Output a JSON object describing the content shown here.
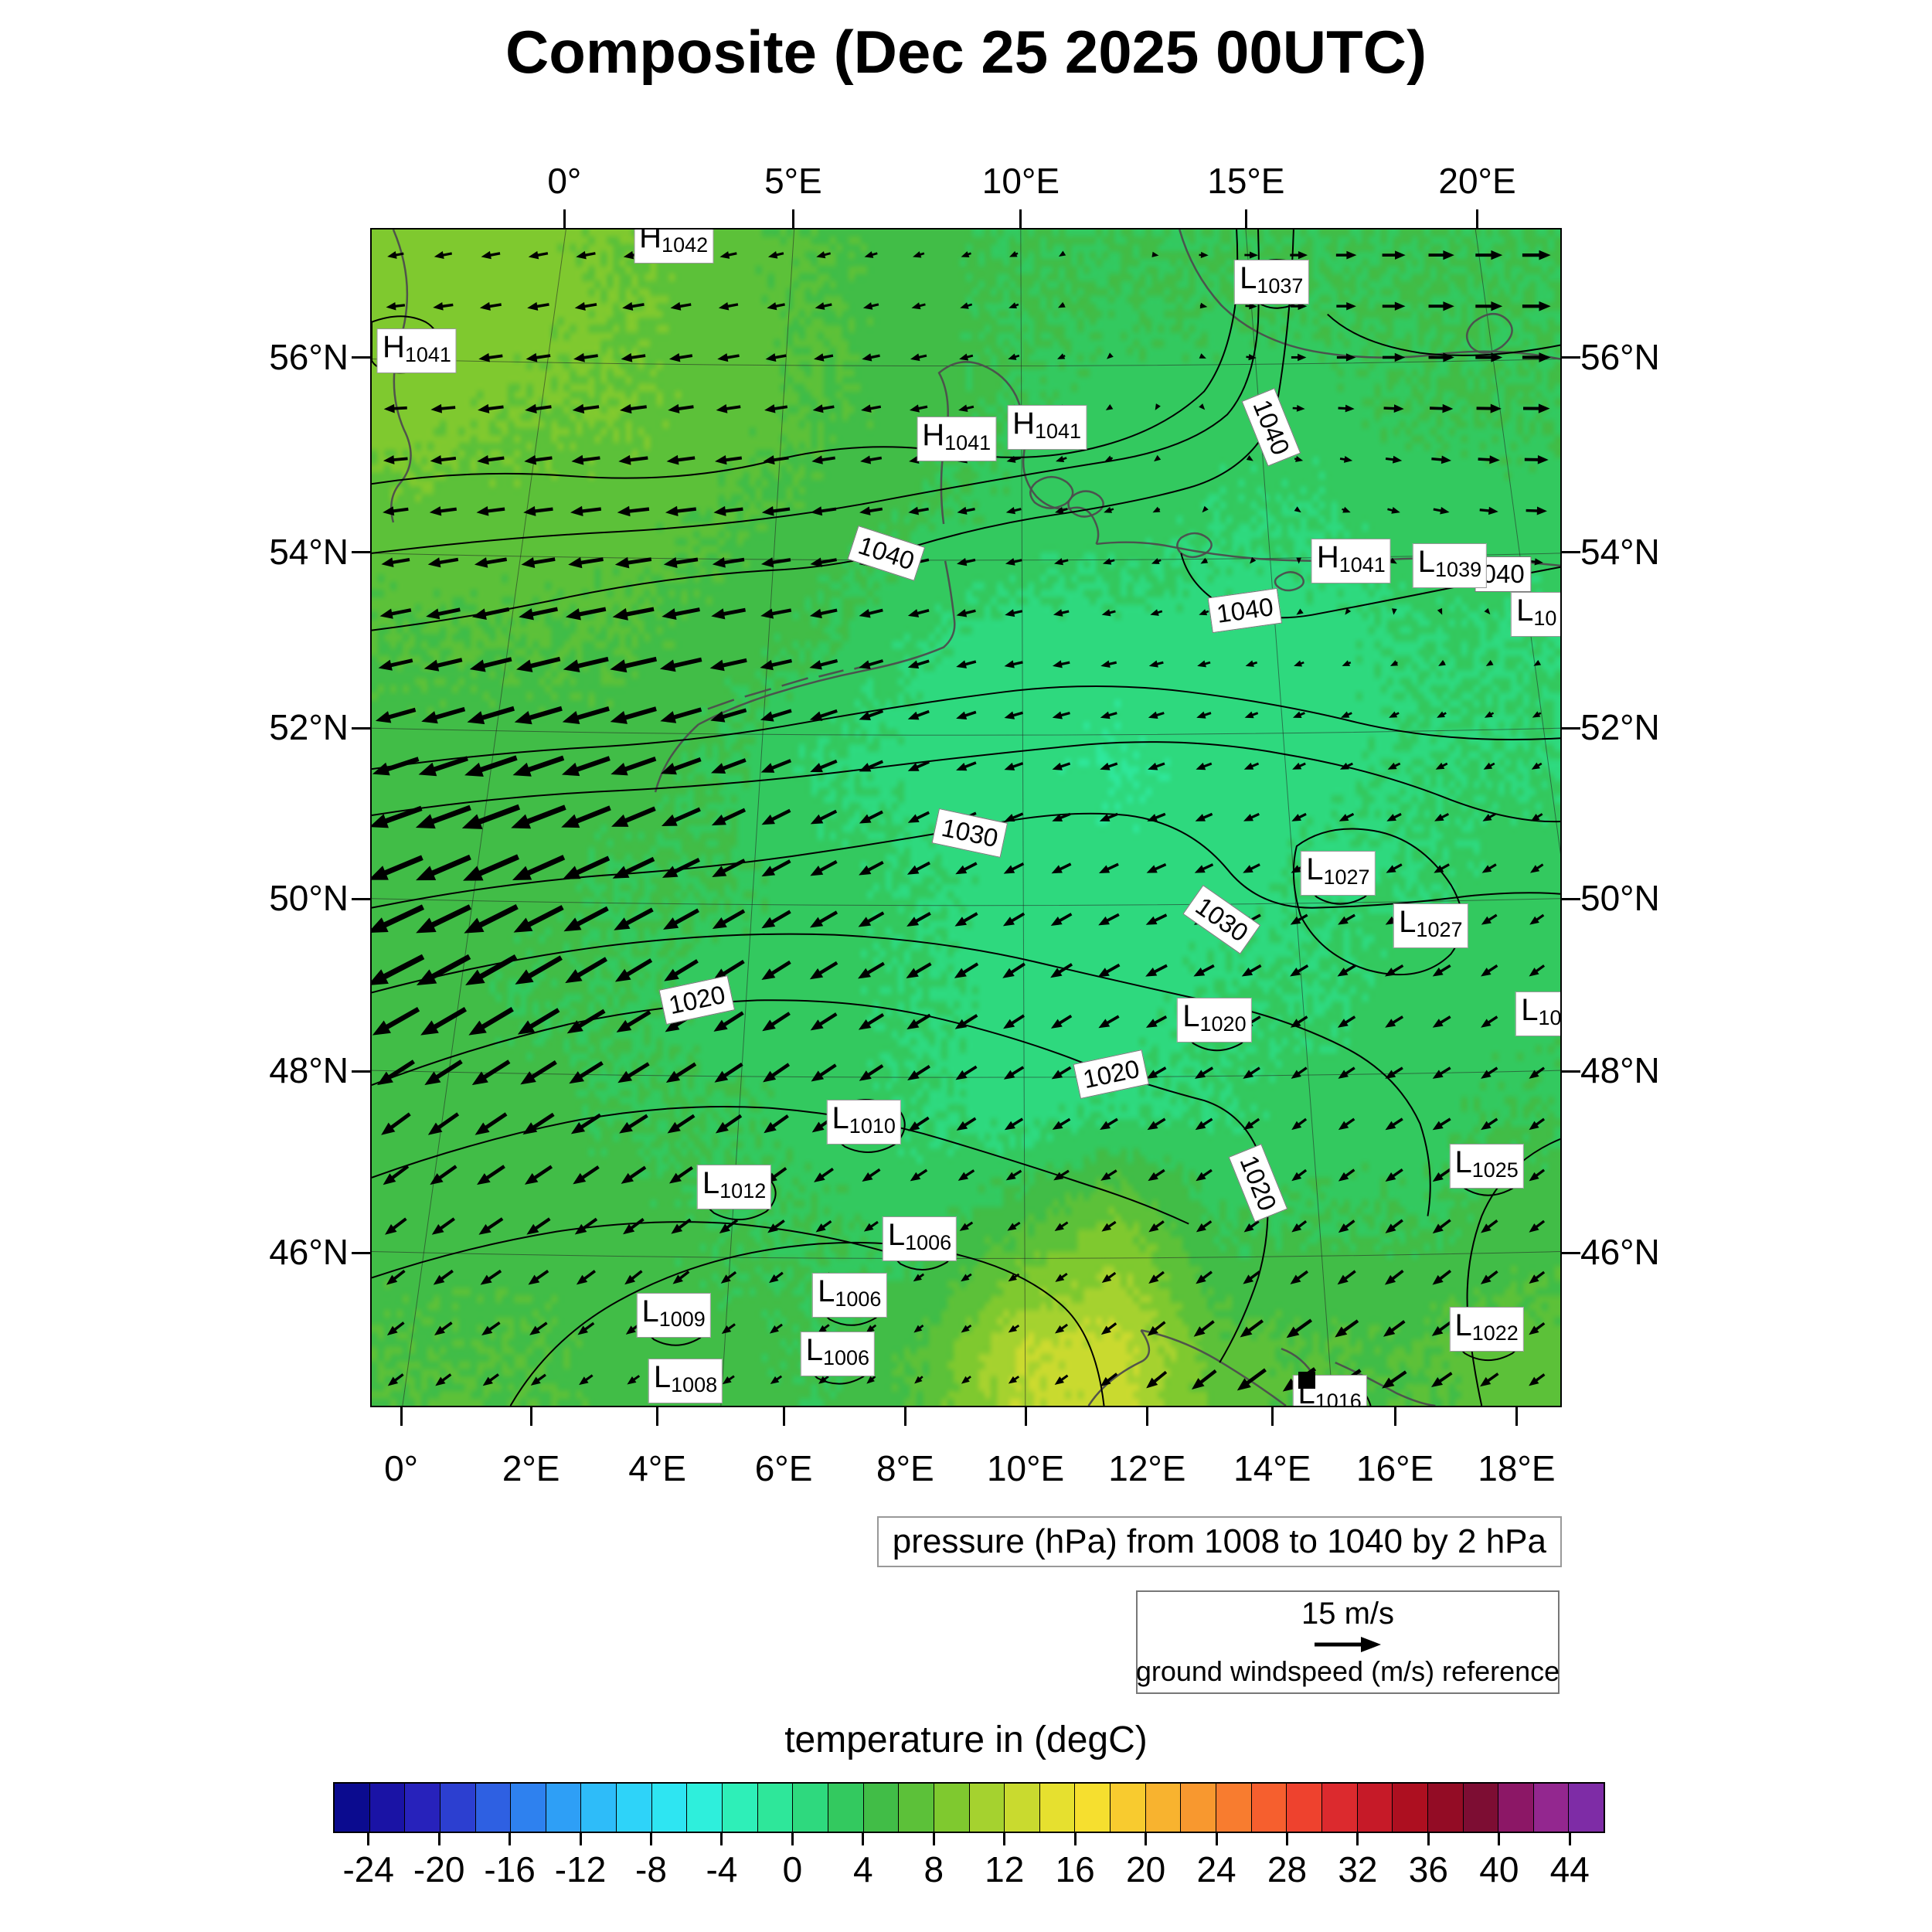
{
  "chart_data": {
    "type": "heatmap",
    "title": "Composite (Dec 25 2025 00UTC)",
    "axes": {
      "top": [
        {
          "label": "0°",
          "f": 0.163
        },
        {
          "label": "5°E",
          "f": 0.355
        },
        {
          "label": "10°E",
          "f": 0.546
        },
        {
          "label": "15°E",
          "f": 0.735
        },
        {
          "label": "20°E",
          "f": 0.929
        }
      ],
      "bottom": [
        {
          "label": "0°",
          "f": 0.026
        },
        {
          "label": "2°E",
          "f": 0.135
        },
        {
          "label": "4°E",
          "f": 0.241
        },
        {
          "label": "6°E",
          "f": 0.347
        },
        {
          "label": "8°E",
          "f": 0.449
        },
        {
          "label": "10°E",
          "f": 0.55
        },
        {
          "label": "12°E",
          "f": 0.652
        },
        {
          "label": "14°E",
          "f": 0.757
        },
        {
          "label": "16°E",
          "f": 0.86
        },
        {
          "label": "18°E",
          "f": 0.962
        }
      ],
      "left": [
        {
          "label": "56°N",
          "f": 0.11
        },
        {
          "label": "54°N",
          "f": 0.275
        },
        {
          "label": "52°N",
          "f": 0.424
        },
        {
          "label": "50°N",
          "f": 0.569
        },
        {
          "label": "48°N",
          "f": 0.715
        },
        {
          "label": "46°N",
          "f": 0.869
        }
      ]
    },
    "temperature": {
      "units": "degC",
      "level_min": -26,
      "level_step": 2,
      "palette": [
        "#0b0b8f",
        "#1a13a5",
        "#2722bb",
        "#2c3fd0",
        "#2e60e2",
        "#2e81ef",
        "#2e9ff6",
        "#2ebcf9",
        "#2ed3f9",
        "#2ee5f2",
        "#2eefdc",
        "#2eefb8",
        "#2ee79a",
        "#2ed97e",
        "#33c95f",
        "#41bd47",
        "#5cc139",
        "#7fc92f",
        "#a5d22f",
        "#c9da2f",
        "#e6e02f",
        "#f6df2f",
        "#f8cb2f",
        "#f8b32f",
        "#f8982f",
        "#f87c2f",
        "#f65f2e",
        "#ee422e",
        "#dc2a2e",
        "#c61a28",
        "#ad0f20",
        "#930c25",
        "#7d0d33",
        "#8c1766",
        "#93278f",
        "#7e2ca6"
      ],
      "grid": [
        [
          9,
          9,
          8,
          7,
          6,
          5,
          4,
          4,
          4,
          4,
          4,
          4
        ],
        [
          9,
          8,
          8,
          7,
          6,
          5,
          4,
          3,
          3,
          3,
          4,
          4
        ],
        [
          7,
          7,
          7,
          6,
          5,
          4,
          3,
          3,
          2,
          2,
          3,
          3
        ],
        [
          6,
          6,
          6,
          5,
          4,
          2,
          1,
          1,
          1,
          1,
          2,
          2
        ],
        [
          5,
          5,
          5,
          4,
          2,
          1,
          1,
          0,
          1,
          1,
          2,
          2
        ],
        [
          5,
          5,
          4,
          4,
          3,
          2,
          1,
          1,
          1,
          2,
          2,
          3
        ],
        [
          5,
          4,
          4,
          3,
          3,
          2,
          1,
          1,
          2,
          2,
          3,
          3
        ],
        [
          5,
          5,
          4,
          4,
          3,
          2,
          1,
          2,
          2,
          3,
          3,
          4
        ],
        [
          5,
          5,
          5,
          4,
          4,
          3,
          6,
          9,
          4,
          4,
          4,
          5
        ],
        [
          6,
          6,
          5,
          5,
          4,
          6,
          12,
          13,
          7,
          6,
          6,
          7
        ]
      ]
    },
    "colorbar": {
      "title": "temperature in (degC)",
      "range_min": -26,
      "range_max": 46,
      "ticks": [
        -24,
        -20,
        -16,
        -12,
        -8,
        -4,
        0,
        4,
        8,
        12,
        16,
        20,
        24,
        28,
        32,
        36,
        40,
        44
      ]
    },
    "wind": {
      "ref_label": "15 m/s",
      "ref_caption": "ground windspeed (m/s) reference",
      "ref_speed_ms": 15,
      "u": [
        [
          -4,
          -5,
          -5,
          -4,
          -3,
          -2,
          2,
          5,
          7,
          8
        ],
        [
          -6,
          -7,
          -7,
          -6,
          -5,
          -3,
          0,
          4,
          7,
          8
        ],
        [
          -7,
          -8,
          -9,
          -8,
          -6,
          -4,
          -2,
          1,
          4,
          6
        ],
        [
          -9,
          -12,
          -13,
          -9,
          -6,
          -5,
          -4,
          -3,
          -2,
          -2
        ],
        [
          -14,
          -16,
          -12,
          -8,
          -6,
          -5,
          -5,
          -4,
          -4,
          -3
        ],
        [
          -16,
          -14,
          -10,
          -8,
          -7,
          -6,
          -6,
          -5,
          -5,
          -4
        ],
        [
          -8,
          -9,
          -8,
          -7,
          -6,
          -5,
          -5,
          -4,
          -5,
          -4
        ],
        [
          -5,
          -6,
          -5,
          -4,
          -3,
          -3,
          -4,
          -4,
          -5,
          -4
        ],
        [
          -4,
          -4,
          -3,
          -3,
          -2,
          -3,
          -6,
          -10,
          -6,
          -4
        ]
      ],
      "v": [
        [
          -1,
          -1,
          -1,
          -1,
          -1,
          -1,
          0,
          0,
          0,
          0
        ],
        [
          0,
          -1,
          -1,
          -1,
          -1,
          -1,
          -1,
          0,
          0,
          0
        ],
        [
          -1,
          -1,
          -1,
          -1,
          -1,
          -1,
          -1,
          -1,
          -1,
          0
        ],
        [
          -2,
          -3,
          -3,
          -2,
          -2,
          -1,
          -1,
          -1,
          -1,
          -1
        ],
        [
          -5,
          -6,
          -5,
          -4,
          -3,
          -2,
          -2,
          -2,
          -2,
          -2
        ],
        [
          -8,
          -8,
          -6,
          -5,
          -4,
          -4,
          -3,
          -3,
          -3,
          -3
        ],
        [
          -6,
          -6,
          -5,
          -5,
          -4,
          -3,
          -3,
          -3,
          -3,
          -3
        ],
        [
          -4,
          -4,
          -4,
          -3,
          -2,
          -2,
          -3,
          -3,
          -4,
          -3
        ],
        [
          -3,
          -3,
          -2,
          -2,
          -2,
          -2,
          -5,
          -7,
          -4,
          -3
        ]
      ]
    },
    "pressure": {
      "caption": "pressure (hPa) from 1008 to 1040 by 2 hPa",
      "centers": [
        {
          "t": "H",
          "v": "1042",
          "x": 0.254,
          "y": 0.01
        },
        {
          "t": "H",
          "v": "1041",
          "x": 0.038,
          "y": 0.103
        },
        {
          "t": "L",
          "v": "1037",
          "x": 0.757,
          "y": 0.045
        },
        {
          "t": "H",
          "v": "1041",
          "x": 0.492,
          "y": 0.178
        },
        {
          "t": "H",
          "v": "1041",
          "x": 0.568,
          "y": 0.168
        },
        {
          "t": "H",
          "v": "1041",
          "x": 0.824,
          "y": 0.282
        },
        {
          "t": "L",
          "v": "1039",
          "x": 0.907,
          "y": 0.286
        },
        {
          "t": "L",
          "v": "10",
          "x": 0.98,
          "y": 0.327
        },
        {
          "t": "L",
          "v": "1027",
          "x": 0.813,
          "y": 0.547
        },
        {
          "t": "L",
          "v": "1027",
          "x": 0.891,
          "y": 0.592
        },
        {
          "t": "L",
          "v": "1020",
          "x": 0.709,
          "y": 0.672
        },
        {
          "t": "L",
          "v": "10",
          "x": 0.984,
          "y": 0.667
        },
        {
          "t": "L",
          "v": "1010",
          "x": 0.414,
          "y": 0.759
        },
        {
          "t": "L",
          "v": "1012",
          "x": 0.305,
          "y": 0.814
        },
        {
          "t": "L",
          "v": "1006",
          "x": 0.461,
          "y": 0.858
        },
        {
          "t": "L",
          "v": "1006",
          "x": 0.402,
          "y": 0.906
        },
        {
          "t": "L",
          "v": "1009",
          "x": 0.254,
          "y": 0.923
        },
        {
          "t": "L",
          "v": "1006",
          "x": 0.392,
          "y": 0.956
        },
        {
          "t": "L",
          "v": "1008",
          "x": 0.264,
          "y": 0.979
        },
        {
          "t": "L",
          "v": "1025",
          "x": 0.938,
          "y": 0.796
        },
        {
          "t": "L",
          "v": "1022",
          "x": 0.938,
          "y": 0.935
        },
        {
          "t": "L",
          "v": "1016",
          "x": 0.806,
          "y": 0.993
        }
      ],
      "contour_labels": [
        {
          "text": "1040",
          "x": 0.433,
          "y": 0.275,
          "rot": 18
        },
        {
          "text": "1040",
          "x": 0.757,
          "y": 0.168,
          "rot": 68
        },
        {
          "text": "1040",
          "x": 0.735,
          "y": 0.324,
          "rot": -8
        },
        {
          "text": "040",
          "x": 0.952,
          "y": 0.293,
          "rot": 0
        },
        {
          "text": "1030",
          "x": 0.503,
          "y": 0.513,
          "rot": 12
        },
        {
          "text": "1030",
          "x": 0.715,
          "y": 0.587,
          "rot": 35
        },
        {
          "text": "1020",
          "x": 0.274,
          "y": 0.655,
          "rot": -12
        },
        {
          "text": "1020",
          "x": 0.622,
          "y": 0.718,
          "rot": -12
        },
        {
          "text": "1020",
          "x": 0.746,
          "y": 0.811,
          "rot": 68
        }
      ],
      "isobars": [
        "M 0 520 Q 120 505 240 480 Q 380 450 520 442 Q 610 438 700 412 Q 800 382 900 368 Q 1000 352 1060 335 Q 1140 312 1172 240 Q 1192 130 1196 0",
        "M 1542 438 Q 1470 452 1400 465 Q 1300 485 1220 500 Q 1150 512 1100 485 Q 1060 460 1050 420",
        "M 0 330 Q 130 310 260 320 Q 400 330 520 300 Q 640 270 760 290 Q 860 305 950 280 Q 1030 258 1080 210 Q 1110 170 1120 100 Q 1125 50 1122 0",
        "M 1130 60 Q 1150 35 1185 40 Q 1215 45 1212 75 Q 1208 100 1175 102 Q 1140 102 1130 60 Z",
        "M 0 120 Q 40 105 70 120 Q 95 135 80 165 Q 60 190 25 185 Q 5 180 0 170 Z",
        "M 1542 150 Q 1440 170 1360 160 Q 1280 148 1240 110",
        "M 0 880 Q 150 850 300 838 Q 450 828 580 808 Q 700 790 800 772 Q 900 752 980 760 Q 1060 770 1110 830 Q 1150 880 1220 880 Q 1320 878 1420 865 Q 1490 858 1542 862",
        "M 0 700 Q 140 680 280 672 Q 420 665 560 640 Q 700 615 820 600 Q 940 585 1060 600 Q 1180 615 1280 640 Q 1400 668 1542 660",
        "M 1200 800 Q 1240 770 1300 780 Q 1360 790 1400 850 Q 1430 900 1400 940 Q 1360 980 1290 960 Q 1230 940 1205 890 Q 1190 840 1200 800 Z",
        "M 0 1110 Q 130 1060 260 1030 Q 380 1005 500 1000 Q 620 998 720 1020 Q 830 1045 920 1080 Q 1010 1112 1080 1130 Q 1140 1150 1158 1220 Q 1170 1290 1150 1360 Q 1130 1420 1100 1470",
        "M 0 990 Q 150 950 300 930 Q 460 910 600 915 Q 740 922 860 950 Q 980 978 1080 1000 Q 1180 1020 1260 1060 Q 1330 1095 1360 1160 Q 1380 1220 1370 1280",
        "M 0 1230 Q 140 1180 270 1155 Q 400 1132 520 1140 Q 640 1150 740 1180 Q 840 1210 930 1240 Q 1000 1262 1060 1290",
        "M 180 1526 Q 230 1440 320 1390 Q 420 1335 540 1320 Q 660 1305 760 1330 Q 850 1352 900 1400 Q 940 1440 950 1526",
        "M 0 420 Q 160 400 320 392 Q 500 382 660 352 Q 820 322 960 300 Q 1060 284 1110 240 Q 1145 200 1150 120 Q 1152 60 1150 0",
        "M 0 760 Q 160 735 320 728 Q 480 720 640 700 Q 800 680 930 668 Q 1060 658 1180 680 Q 1300 700 1400 740 Q 1480 770 1542 768",
        "M 0 1360 Q 120 1320 240 1300 Q 360 1282 470 1290 Q 580 1300 680 1330",
        "M 1542 1180 Q 1470 1210 1440 1280 Q 1414 1350 1424 1430 Q 1430 1480 1440 1526",
        "M 600 1140 Q 640 1118 682 1140 Q 702 1162 680 1186 Q 648 1206 614 1190 Q 590 1172 600 1140 Z",
        "M 430 1228 Q 470 1206 512 1228 Q 536 1250 512 1274 Q 478 1294 444 1276 Q 420 1256 430 1228 Z",
        "M 678 1294 Q 714 1276 748 1298 Q 768 1318 746 1340 Q 716 1358 686 1342 Q 666 1324 678 1294 Z",
        "M 586 1366 Q 622 1348 656 1370 Q 676 1390 654 1412 Q 624 1430 594 1414 Q 574 1396 586 1366 Z",
        "M 358 1392 Q 394 1374 428 1396 Q 448 1416 426 1438 Q 396 1456 366 1440 Q 346 1422 358 1392 Z",
        "M 570 1442 Q 606 1424 640 1446 Q 660 1466 638 1488 Q 608 1506 578 1490 Q 558 1472 570 1442 Z",
        "M 374 1478 Q 410 1460 444 1482 Q 464 1502 442 1522 L 380 1522 Q 362 1500 374 1478 Z",
        "M 1058 1008 Q 1094 990 1130 1012 Q 1152 1034 1128 1056 Q 1096 1074 1066 1056 Q 1046 1036 1058 1008 Z",
        "M 1410 1196 Q 1446 1178 1482 1200 Q 1504 1222 1480 1244 Q 1448 1262 1418 1244 Q 1398 1224 1410 1196 Z",
        "M 1410 1410 Q 1446 1392 1482 1414 Q 1504 1436 1480 1458 Q 1448 1476 1418 1458 Q 1398 1438 1410 1410 Z",
        "M 1200 1526 Q 1216 1492 1252 1492 Q 1286 1494 1296 1526",
        "M 1218 818 Q 1254 800 1290 822 Q 1312 844 1288 866 Q 1256 884 1226 866 Q 1206 846 1218 818 Z"
      ]
    },
    "coastlines": [
      "M 28 0 Q 58 70 38 140 Q 18 205 42 260 Q 62 300 36 330 Q 20 350 28 380",
      "M 742 382 Q 734 320 746 262 Q 752 215 736 186 Q 762 164 792 176 Q 822 188 836 216 Q 852 252 846 292 Q 842 322 862 346 Q 882 366 906 362 Q 928 356 938 378 Q 946 394 940 408",
      "M 862 328 q 20 -14 40 0 q 16 14 -2 28 q -22 12 -40 -2 q -12 -14 2 -26 Z",
      "M 912 344 q 16 -10 32 2 q 12 12 -4 22 q -18 10 -32 -2 q -10 -12 4 -22 Z",
      "M 1048 0 Q 1064 56 1102 98 Q 1148 144 1222 158 Q 1300 172 1382 162 Q 1462 152 1542 168",
      "M 1430 120 q 26 -20 44 -2 q 14 16 -8 34 q -24 16 -40 0 q -12 -16 4 -32 Z",
      "M 940 408 Q 992 402 1040 412 Q 1100 424 1162 428 Q 1240 432 1320 428 Q 1410 424 1480 430 L 1542 436",
      "M 1050 400 q 18 -12 34 0 q 12 10 -2 20 q -18 10 -32 0 q -10 -10 0 -20 Z",
      "M 1180 448 q 14 -8 26 2 q 8 10 -6 16 q -16 6 -26 -4 q -6 -8 6 -14 Z",
      "M 424 642 Q 470 618 522 602 Q 580 584 640 572 Q 700 560 742 542 Q 758 528 756 508 Q 752 470 744 430",
      "M 436 622 l 34 -12 M 484 606 l 34 -10 M 532 592 l 34 -10 M 580 580 l 32 -8 M 626 570 l 30 -8",
      "M 424 642 Q 404 660 388 684 Q 374 706 368 730",
      "M 998 1428 Q 1048 1438 1096 1466 Q 1146 1496 1186 1526",
      "M 1180 1452 Q 1208 1462 1224 1490 Q 1236 1512 1232 1526 M 1250 1470 Q 1290 1488 1330 1510 Q 1360 1524 1380 1526",
      "M 930 1526 Q 952 1492 996 1470 Q 1020 1460 998 1428"
    ],
    "graticule": {
      "meridians": [
        [
          252,
          40
        ],
        [
          548,
          453
        ],
        [
          842,
          848
        ],
        [
          1134,
          1247
        ],
        [
          1432,
          1640
        ]
      ],
      "parallels": [
        168,
        420,
        647,
        868,
        1091,
        1326
      ]
    },
    "marker_square": {
      "x": 0.787,
      "y": 0.978
    }
  }
}
